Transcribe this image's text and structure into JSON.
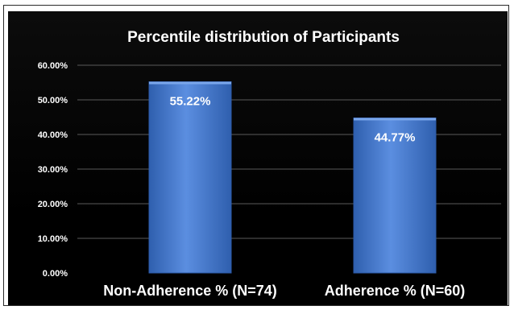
{
  "chart_data": {
    "type": "bar",
    "title": "Percentile distribution of Participants",
    "categories": [
      "Non-Adherence % (N=74)",
      "Adherence % (N=60)"
    ],
    "values": [
      55.22,
      44.77
    ],
    "data_labels": [
      "55.22%",
      "44.77%"
    ],
    "ylim": [
      0,
      60
    ],
    "yticks": [
      0,
      10,
      20,
      30,
      40,
      50,
      60
    ],
    "ytick_labels": [
      "0.00%",
      "10.00%",
      "20.00%",
      "30.00%",
      "40.00%",
      "50.00%",
      "60.00%"
    ],
    "grid": true,
    "colors": {
      "background": "#000000",
      "bar": "#4a7fd0",
      "bar_dark": "#2c5aa8",
      "text": "#ffffff",
      "grid": "#5a5a5a"
    }
  }
}
